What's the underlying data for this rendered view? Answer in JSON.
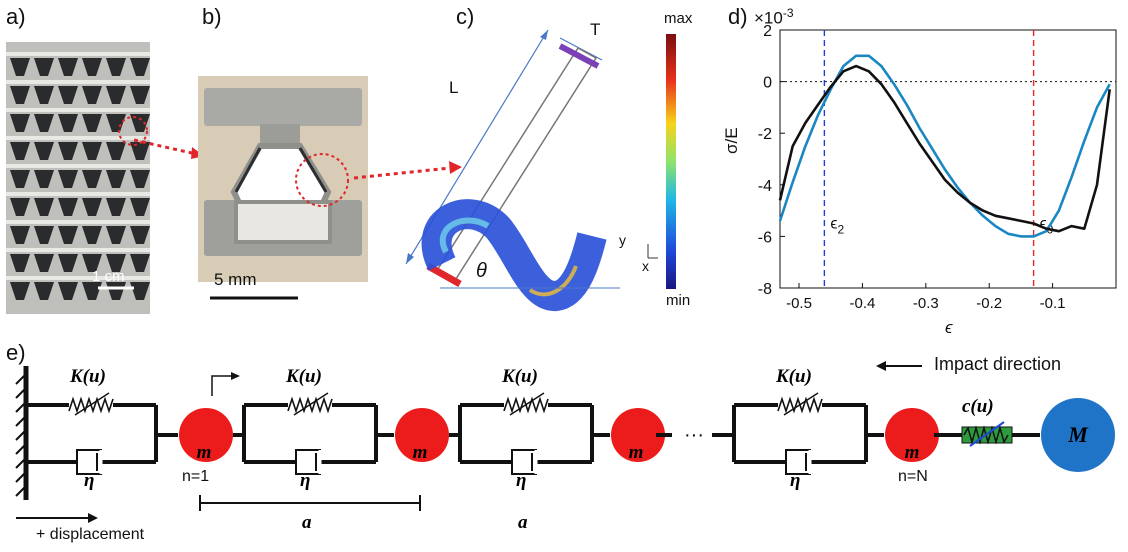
{
  "panels": {
    "a": "a)",
    "b": "b)",
    "c": "c)",
    "d": "d)",
    "e": "e)"
  },
  "panel_a": {
    "scale_label": "1 cm"
  },
  "panel_b": {
    "scale_label": "5 mm"
  },
  "panel_c": {
    "dim_L": "L",
    "dim_T": "T",
    "angle": "θ",
    "axis_y": "y",
    "axis_x": "x",
    "colorbar_max": "max",
    "colorbar_min": "min"
  },
  "chart_data": {
    "type": "line",
    "xlabel": "ϵ",
    "ylabel": "σ/E",
    "y_multiplier": "×10",
    "y_exponent": "-3",
    "xlim": [
      -0.53,
      0.0
    ],
    "ylim": [
      -8,
      2
    ],
    "xticks": [
      -0.5,
      -0.4,
      -0.3,
      -0.2,
      -0.1
    ],
    "xtick_labels": [
      "-0.5",
      "-0.4",
      "-0.3",
      "-0.2",
      "-0.1"
    ],
    "yticks": [
      -8,
      -6,
      -4,
      -2,
      0,
      2
    ],
    "ytick_labels": [
      "-8",
      "-6",
      "-4",
      "-2",
      "0",
      "2"
    ],
    "vlines": [
      {
        "x": -0.46,
        "label_base": "ϵ",
        "label_sub": "2",
        "color": "#1f3fd6"
      },
      {
        "x": -0.13,
        "label_base": "ϵ",
        "label_sub": "0",
        "color": "#e0262a"
      }
    ],
    "series": [
      {
        "color": "#1a86c4",
        "x": [
          -0.53,
          -0.51,
          -0.49,
          -0.47,
          -0.45,
          -0.43,
          -0.41,
          -0.39,
          -0.37,
          -0.35,
          -0.33,
          -0.31,
          -0.29,
          -0.27,
          -0.25,
          -0.23,
          -0.21,
          -0.19,
          -0.17,
          -0.15,
          -0.13,
          -0.11,
          -0.09,
          -0.07,
          -0.05,
          -0.03,
          -0.01
        ],
        "y": [
          -5.4,
          -3.9,
          -2.5,
          -1.3,
          -0.3,
          0.6,
          1.0,
          1.0,
          0.6,
          -0.1,
          -0.9,
          -1.8,
          -2.6,
          -3.4,
          -4.1,
          -4.7,
          -5.2,
          -5.6,
          -5.9,
          -6.0,
          -6.0,
          -5.8,
          -5.0,
          -3.7,
          -2.3,
          -1.0,
          -0.1
        ]
      },
      {
        "color": "#111111",
        "x": [
          -0.53,
          -0.51,
          -0.49,
          -0.47,
          -0.45,
          -0.43,
          -0.41,
          -0.39,
          -0.37,
          -0.35,
          -0.33,
          -0.31,
          -0.29,
          -0.27,
          -0.25,
          -0.23,
          -0.21,
          -0.19,
          -0.17,
          -0.15,
          -0.13,
          -0.11,
          -0.09,
          -0.07,
          -0.05,
          -0.03,
          -0.01
        ],
        "y": [
          -4.6,
          -2.5,
          -1.6,
          -0.9,
          -0.2,
          0.4,
          0.6,
          0.4,
          -0.1,
          -0.8,
          -1.6,
          -2.4,
          -3.1,
          -3.8,
          -4.3,
          -4.7,
          -5.0,
          -5.2,
          -5.3,
          -5.4,
          -5.5,
          -5.7,
          -5.8,
          -5.6,
          -5.7,
          -4.0,
          -0.3
        ]
      }
    ]
  },
  "panel_e": {
    "stiffness": "K(u)",
    "damping": "η",
    "mass": "m",
    "contact": "c(u)",
    "impactor": "M",
    "first_index": "n=1",
    "last_index": "n=N",
    "lattice": "a",
    "ellipsis": "···",
    "impact_label": "Impact direction",
    "displacement_label": "+ displacement"
  }
}
